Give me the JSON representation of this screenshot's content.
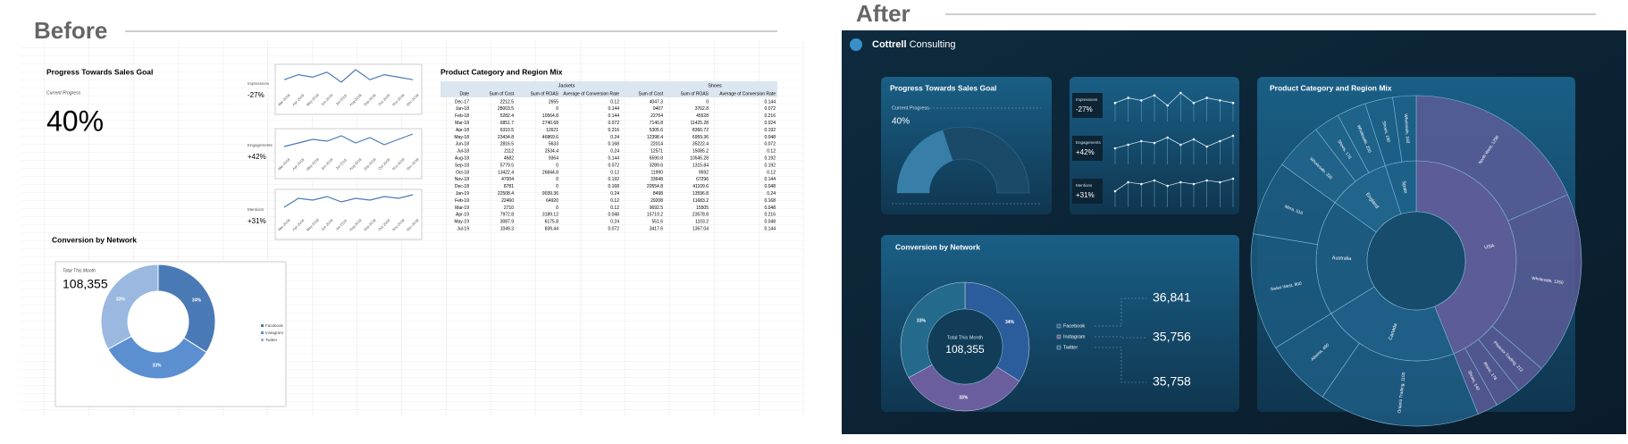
{
  "before_title": "Before",
  "after_title": "After",
  "brand": {
    "name": "Cottrell",
    "suffix": "Consulting"
  },
  "table": {
    "title": "Product Category and Region Mix",
    "groups": [
      "Jackets",
      "Shoes"
    ],
    "columns": [
      "Date",
      "Sum of Cost",
      "Sum of ROAS",
      "Average of Conversion Rate",
      "Sum of Cost",
      "Sum of ROAS",
      "Average of Conversion Rate"
    ],
    "rows": [
      [
        "Dec-17",
        2212.5,
        2655,
        0.12,
        4047.3,
        0,
        0.144
      ],
      [
        "Jan-18",
        28003.5,
        0,
        0.144,
        9407,
        3762.8,
        0.072
      ],
      [
        "Feb-18",
        5282.4,
        10564.8,
        0.144,
        22764,
        45528,
        0.216
      ],
      [
        "Mar-18",
        6851.7,
        2740.68,
        0.072,
        7140.8,
        11425.28,
        0.024
      ],
      [
        "Apr-18",
        6310.5,
        12621,
        0.216,
        5305.6,
        8366.72,
        0.192
      ],
      [
        "May-18",
        23434.8,
        46869.6,
        0.24,
        12398.4,
        6959.36,
        0.048
      ],
      [
        "Jun-18",
        2816.5,
        5633,
        0.168,
        22014,
        35222.4,
        0.072
      ],
      [
        "Jul-18",
        2112,
        2534.4,
        0.24,
        12571,
        15085.2,
        0.12
      ],
      [
        "Aug-18",
        4682,
        9364,
        0.144,
        6590.8,
        10545.28,
        0.192
      ],
      [
        "Sep-18",
        5779.5,
        0,
        0.072,
        3289.6,
        1315.84,
        0.192
      ],
      [
        "Oct-18",
        13422.4,
        26844.8,
        0.12,
        11990,
        9592,
        0.12
      ],
      [
        "Nov-18",
        47004,
        0,
        0.192,
        33648,
        67296,
        0.144
      ],
      [
        "Dec-18",
        8781,
        0,
        0.168,
        20554.8,
        41109.6,
        0.048
      ],
      [
        "Jan-19",
        22508.4,
        9039.36,
        0.24,
        8498,
        13596.8,
        0.24
      ],
      [
        "Feb-19",
        22460,
        64920,
        0.12,
        29208,
        11683.2,
        0.168
      ],
      [
        "Mar-19",
        2710,
        0,
        0.12,
        9692.5,
        15505,
        0.048
      ],
      [
        "Apr-19",
        7972.8,
        3189.12,
        0.048,
        15719.2,
        23578.8,
        0.216
      ],
      [
        "May-19",
        3087.9,
        6175.8,
        0.24,
        551.6,
        1103.2,
        0.048
      ],
      [
        "Jul-19",
        1049.3,
        839.44,
        0.072,
        3417.6,
        1367.04,
        0.144
      ]
    ]
  },
  "chart_data": [
    {
      "type": "gauge",
      "title": "Progress Towards Sales Goal",
      "label": "Current Progress",
      "values": [
        40
      ],
      "value_labels": [
        "40%"
      ],
      "ylim": [
        0,
        100
      ],
      "color": "#3f8bb8"
    },
    {
      "type": "sparklines",
      "categories": [
        "Mar-2018",
        "Apr-2018",
        "May-2018",
        "Jun-2018",
        "Jul-2018",
        "Aug-2018",
        "Sep-2018",
        "Oct-2018",
        "Nov-2018",
        "Dec-2018"
      ],
      "color": "#4a7ab5",
      "series": [
        {
          "name": "Impressions",
          "change": -27,
          "change_label": "-27%",
          "values": [
            42,
            44,
            43,
            45,
            41,
            46,
            42,
            44,
            43,
            42
          ]
        },
        {
          "name": "Engagements",
          "change": 42,
          "change_label": "+42%",
          "values": [
            38,
            40,
            42,
            41,
            44,
            40,
            43,
            39,
            42,
            45
          ]
        },
        {
          "name": "Mentions",
          "change": 31,
          "change_label": "+31%",
          "values": [
            36,
            41,
            40,
            42,
            39,
            41,
            40,
            42,
            41,
            43
          ]
        }
      ]
    },
    {
      "type": "donut",
      "title": "Conversion by Network",
      "center_label": "Total This Month",
      "total": 108355,
      "total_label": "108,355",
      "categories": [
        "Facebook",
        "Instagram",
        "Twitter"
      ],
      "values": [
        36841,
        35756,
        35758
      ],
      "value_labels": [
        "36,841",
        "35,756",
        "35,758"
      ],
      "percent_labels": [
        "34%",
        "33%",
        "33%"
      ],
      "colors": [
        "#4a7ab5",
        "#5b8fd0",
        "#9ab8e0"
      ],
      "after_colors": [
        "#2b5d9c",
        "#6b5e9e",
        "#246a8c"
      ]
    },
    {
      "type": "sunburst",
      "title": "Product Category and Region Mix",
      "groups": [
        {
          "name": "USA",
          "color": "#5c5c98",
          "children": [
            {
              "label": "North West, 1290",
              "value": 1290
            },
            {
              "label": "Wholesale, 1250",
              "value": 1250
            },
            {
              "label": "Phoenix Trading, 213",
              "value": 213
            },
            {
              "label": "Rhino, 178",
              "value": 178
            },
            {
              "label": "Shoes, 140",
              "value": 140
            }
          ]
        },
        {
          "name": "Canada",
          "color": "#1f5e86",
          "children": [
            {
              "label": "Ontario Trading, 1100",
              "value": 1100
            },
            {
              "label": "Alberta, 460",
              "value": 460
            }
          ]
        },
        {
          "name": "Australia",
          "color": "#1c5a80",
          "children": [
            {
              "label": "Swiss West, 800",
              "value": 800
            },
            {
              "label": "Mirra, 510",
              "value": 510
            }
          ]
        },
        {
          "name": "England",
          "color": "#22658c",
          "children": [
            {
              "label": "Wholesale, 330",
              "value": 330
            },
            {
              "label": "Shoes, 176",
              "value": 176
            },
            {
              "label": "Wholesale, 200",
              "value": 200
            }
          ]
        },
        {
          "name": "Spain",
          "color": "#1d6088",
          "children": [
            {
              "label": "Shoes, 190",
              "value": 190
            },
            {
              "label": "Wholesale, 160",
              "value": 160
            }
          ]
        }
      ]
    }
  ]
}
